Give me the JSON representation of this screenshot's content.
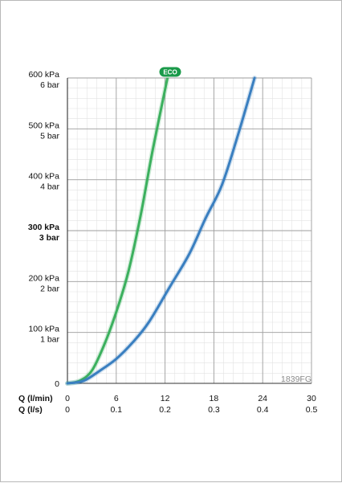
{
  "chart_data": {
    "type": "line",
    "code_label": "1839FG",
    "y_axis": {
      "ticks": [
        {
          "value": 0,
          "labels": [
            "0"
          ],
          "bold": false
        },
        {
          "value": 100,
          "labels": [
            "100 kPa",
            "1 bar"
          ],
          "bold": false
        },
        {
          "value": 200,
          "labels": [
            "200 kPa",
            "2 bar"
          ],
          "bold": false
        },
        {
          "value": 300,
          "labels": [
            "300 kPa",
            "3 bar"
          ],
          "bold": true
        },
        {
          "value": 400,
          "labels": [
            "400 kPa",
            "4 bar"
          ],
          "bold": false
        },
        {
          "value": 500,
          "labels": [
            "500 kPa",
            "5 bar"
          ],
          "bold": false
        },
        {
          "value": 600,
          "labels": [
            "600 kPa",
            "6 bar"
          ],
          "bold": false
        }
      ],
      "range": [
        0,
        600
      ]
    },
    "x_axis": {
      "range": [
        0,
        30
      ],
      "primary_label": "Q (l/min)",
      "secondary_label": "Q (l/s)",
      "primary_ticks": [
        "0",
        "6",
        "12",
        "18",
        "24",
        "30"
      ],
      "primary_values": [
        0,
        6,
        12,
        18,
        24,
        30
      ],
      "secondary_ticks": [
        "0",
        "0.1",
        "0.2",
        "0.3",
        "0.4",
        "0.5"
      ]
    },
    "grid": true,
    "series": [
      {
        "name": "ECO",
        "color": "#3cb05e",
        "x": [
          0,
          1.5,
          3,
          4.5,
          6,
          7.5,
          9,
          10.5,
          12.3
        ],
        "y": [
          0,
          5,
          25,
          75,
          140,
          220,
          330,
          460,
          600
        ]
      },
      {
        "color": "#3a7fc0",
        "x": [
          0,
          2,
          4,
          6,
          8,
          10,
          12.6,
          15,
          17,
          19,
          21,
          23
        ],
        "y": [
          0,
          5,
          25,
          48,
          80,
          120,
          190,
          255,
          325,
          390,
          490,
          600
        ]
      }
    ],
    "badge": {
      "text": "ECO",
      "color": "#1a9a4a"
    }
  }
}
